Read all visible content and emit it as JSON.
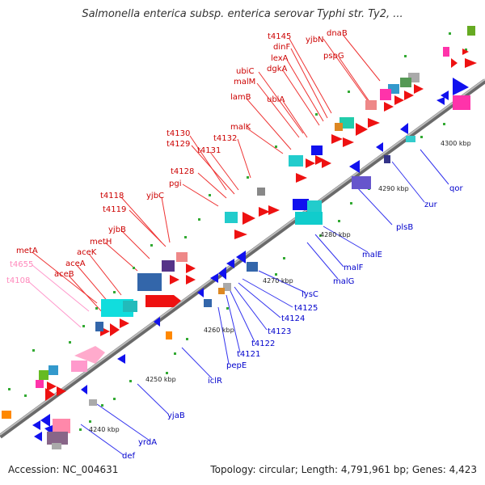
{
  "title": "Salmonella enterica subsp. enterica serovar Typhi str. Ty2, ...",
  "footer": {
    "accession": "Accession: NC_004631",
    "topology": "Topology: circular; Length: 4,791,961 bp; Genes: 4,423"
  },
  "colors": {
    "forward_feature": "#ee1111",
    "reverse_feature": "#1111ee",
    "forward_label": "#cc0000",
    "reverse_label": "#0000cc",
    "pink_label": "#ff88bb",
    "backbone": "#999999",
    "dots": "#228822"
  },
  "ticks": [
    "4240 kbp",
    "4250 kbp",
    "4260 kbp",
    "4270 kbp",
    "4280 kbp",
    "4290 kbp",
    "4300 kbp"
  ],
  "upper_labels": [
    {
      "name": "t4145",
      "color": "red"
    },
    {
      "name": "dinF",
      "color": "red"
    },
    {
      "name": "yjbN",
      "color": "red"
    },
    {
      "name": "dnaB",
      "color": "red"
    },
    {
      "name": "lexA",
      "color": "red"
    },
    {
      "name": "pspG",
      "color": "red"
    },
    {
      "name": "dgkA",
      "color": "red"
    },
    {
      "name": "ubiC",
      "color": "red"
    },
    {
      "name": "malM",
      "color": "red"
    },
    {
      "name": "lamB",
      "color": "red"
    },
    {
      "name": "ubiA",
      "color": "red"
    },
    {
      "name": "malK",
      "color": "red"
    },
    {
      "name": "t4130",
      "color": "red"
    },
    {
      "name": "t4129",
      "color": "red"
    },
    {
      "name": "t4132",
      "color": "red"
    },
    {
      "name": "t4131",
      "color": "red"
    },
    {
      "name": "t4128",
      "color": "red"
    },
    {
      "name": "pgi",
      "color": "red"
    },
    {
      "name": "t4118",
      "color": "red"
    },
    {
      "name": "yjbC",
      "color": "red"
    },
    {
      "name": "t4119",
      "color": "red"
    },
    {
      "name": "yjbB",
      "color": "red"
    },
    {
      "name": "metH",
      "color": "red"
    },
    {
      "name": "metA",
      "color": "red"
    },
    {
      "name": "aceK",
      "color": "red"
    },
    {
      "name": "t4655",
      "color": "pink"
    },
    {
      "name": "aceA",
      "color": "red"
    },
    {
      "name": "aceB",
      "color": "red"
    },
    {
      "name": "t4108",
      "color": "pink"
    }
  ],
  "lower_labels": [
    {
      "name": "qor"
    },
    {
      "name": "zur"
    },
    {
      "name": "plsB"
    },
    {
      "name": "malE"
    },
    {
      "name": "malF"
    },
    {
      "name": "malG"
    },
    {
      "name": "lysC"
    },
    {
      "name": "t4125"
    },
    {
      "name": "t4124"
    },
    {
      "name": "t4123"
    },
    {
      "name": "t4122"
    },
    {
      "name": "t4121"
    },
    {
      "name": "pepE"
    },
    {
      "name": "iclR"
    },
    {
      "name": "yjaB"
    },
    {
      "name": "yrdA"
    },
    {
      "name": "def"
    }
  ]
}
